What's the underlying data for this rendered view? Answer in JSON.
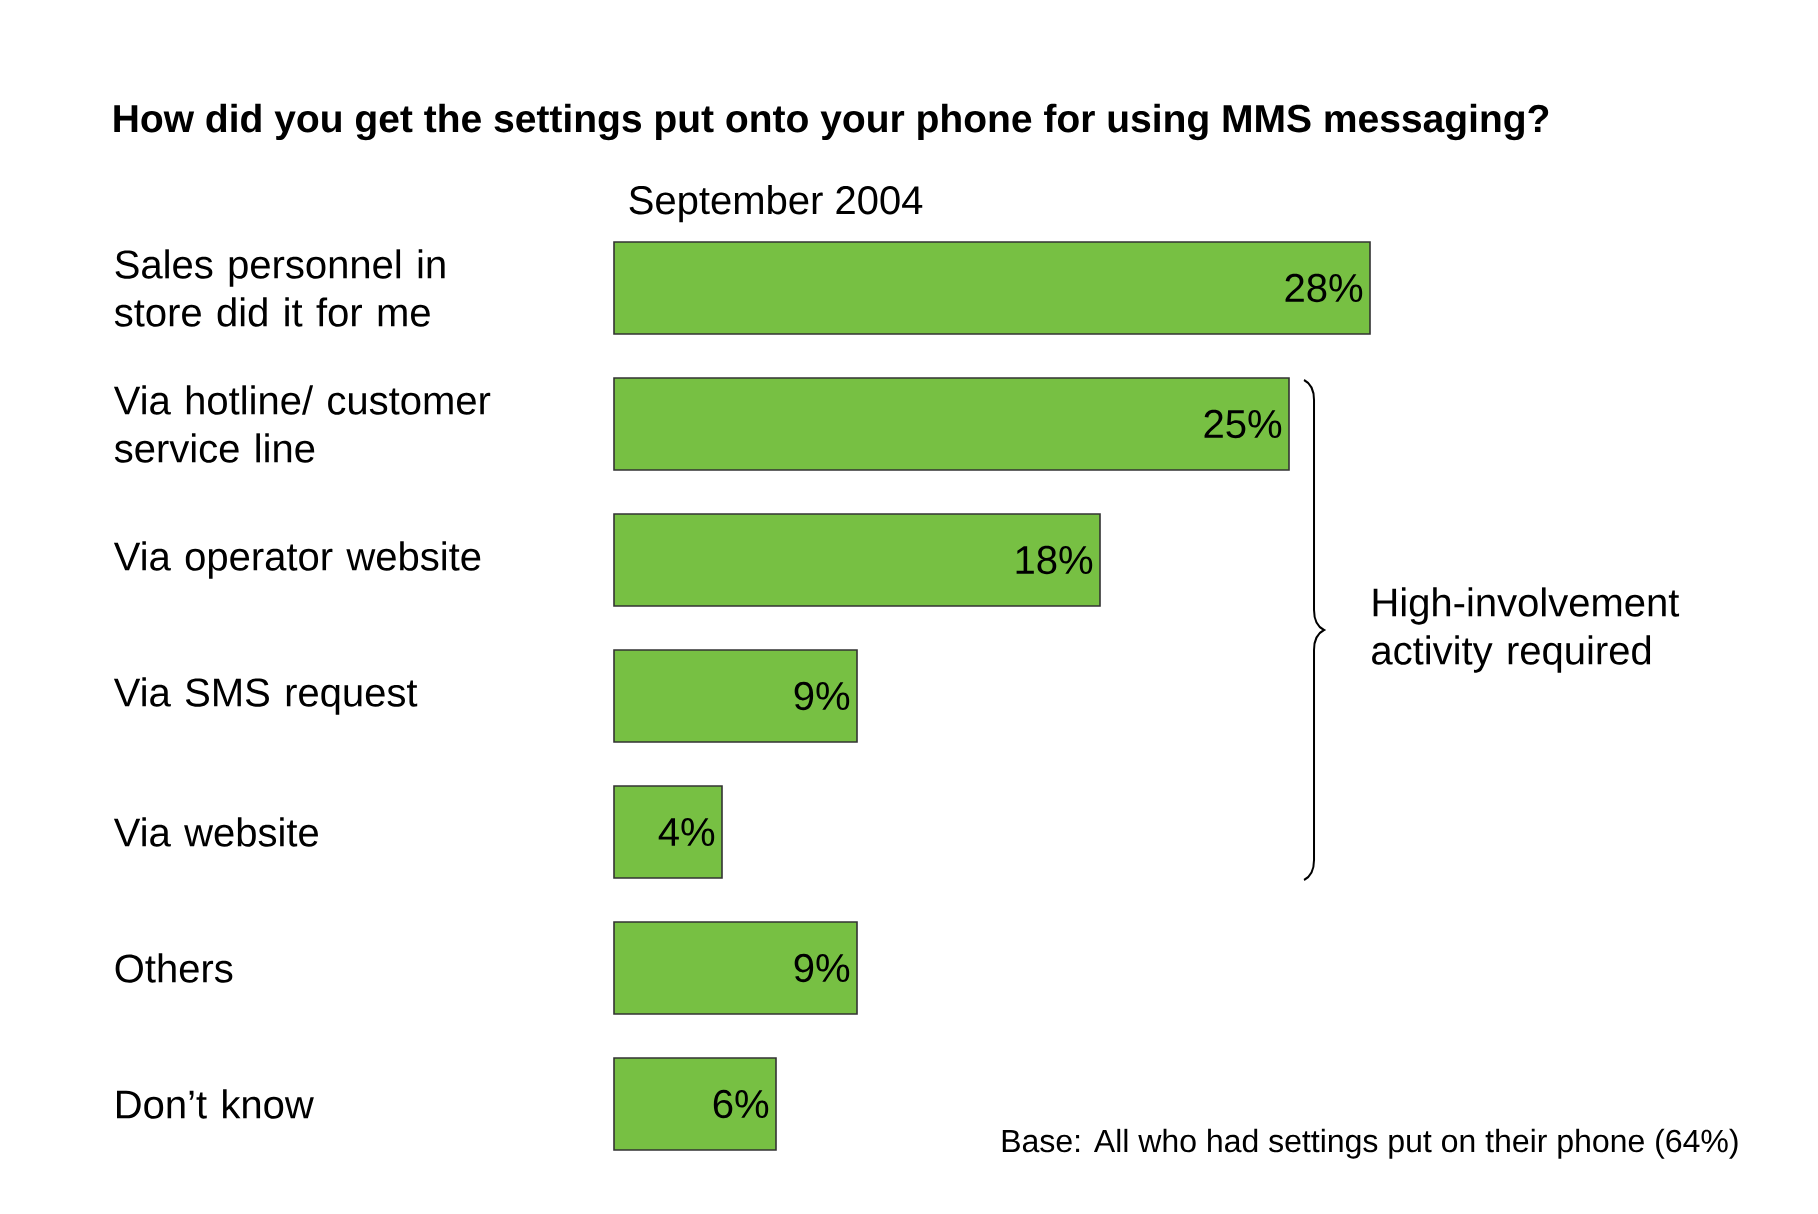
{
  "chart_data": {
    "type": "bar",
    "orientation": "horizontal",
    "title": "How did you get the settings put onto your phone for using MMS messaging?",
    "subtitle": "September 2004",
    "categories": [
      "Sales personnel in store did it for me",
      "Via hotline/ customer service line",
      "Via operator website",
      "Via SMS request",
      "Via website",
      "Others",
      "Don’t know"
    ],
    "values": [
      28,
      25,
      18,
      9,
      4,
      9,
      6
    ],
    "value_labels": [
      "28%",
      "25%",
      "18%",
      "9%",
      "4%",
      "9%",
      "6%"
    ],
    "color": "#77c043",
    "annotations": [
      "High-involvement activity required",
      "Base: All who had settings put on their phone (64%)"
    ]
  }
}
